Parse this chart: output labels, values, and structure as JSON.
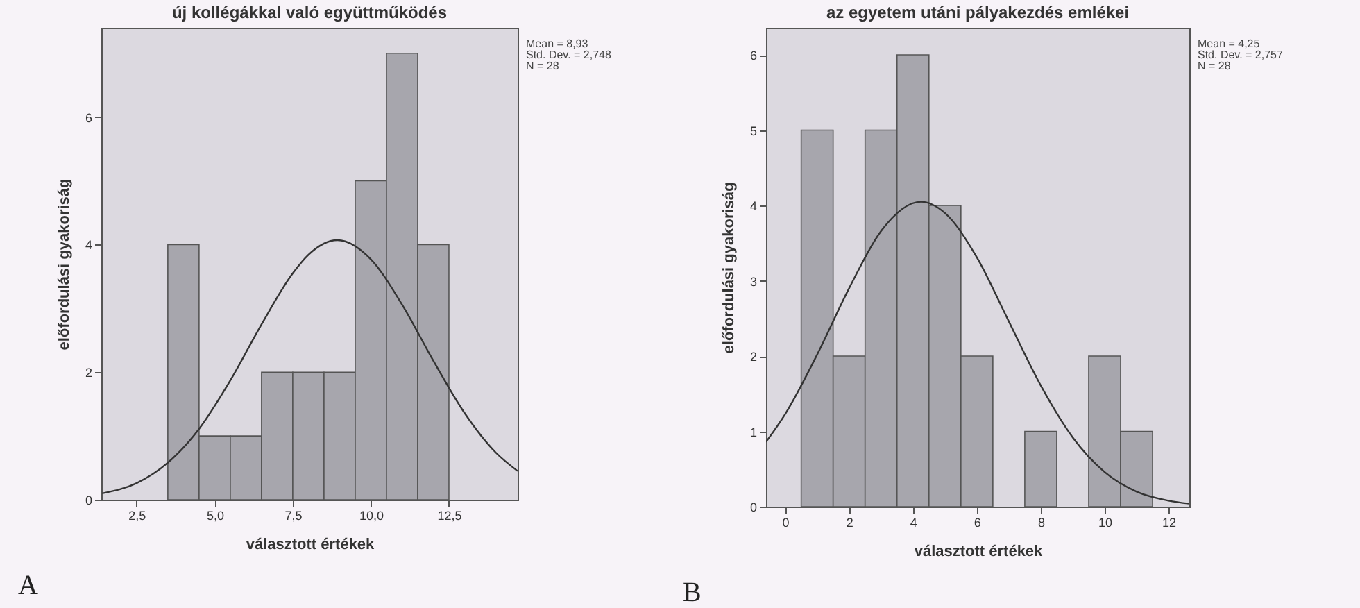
{
  "chart_data": [
    {
      "type": "histogram",
      "title": "új kollégákkal való együttműködés",
      "xlabel": "választott értékek",
      "ylabel": "előfordulási gyakoriság",
      "color": "#a7a6ad",
      "bins": [
        3.5,
        4.5,
        5.5,
        6.5,
        7.5,
        8.5,
        9.5,
        10.5,
        11.5,
        12.5
      ],
      "values": [
        4,
        1,
        1,
        2,
        2,
        2,
        5,
        7,
        4
      ],
      "series": [
        {
          "type": "line",
          "color": "#333333",
          "x": [
            1.4,
            2.5,
            3.5,
            4.5,
            5.5,
            6.5,
            7.5,
            8,
            8.93,
            10,
            11,
            12,
            13,
            14,
            14.7
          ],
          "values": [
            0.1,
            0.26,
            0.58,
            1.11,
            1.87,
            2.75,
            3.55,
            3.84,
            4.07,
            3.77,
            3.06,
            2.18,
            1.36,
            0.74,
            0.45
          ]
        }
      ],
      "xlim": [
        1.37,
        14.7
      ],
      "xticks": [
        {
          "value": 2.5,
          "label": "2,5"
        },
        {
          "value": 5,
          "label": "5,0"
        },
        {
          "value": 7.5,
          "label": "7,5"
        },
        {
          "value": 10,
          "label": "10,0"
        },
        {
          "value": 12.5,
          "label": "12,5"
        }
      ],
      "ylim": [
        0,
        7.4
      ],
      "yticks": [
        0,
        2,
        4,
        6
      ],
      "grid": false,
      "annotations": [
        "Mean = 8,93",
        "Std. Dev. = 2,748",
        "N = 28",
        "A"
      ]
    },
    {
      "type": "histogram",
      "title": "az egyetem utáni pályakezdés emlékei",
      "xlabel": "választott értékek",
      "ylabel": "előfordulási gyakoriság",
      "color": "#a7a6ad",
      "bins": [
        0.5,
        1.5,
        2.5,
        3.5,
        4.5,
        5.5,
        6.5,
        7.5,
        8.5,
        9.5,
        10.5,
        11.5
      ],
      "values": [
        5,
        2,
        5,
        6,
        4,
        2,
        0,
        1,
        0,
        2,
        1
      ],
      "series": [
        {
          "type": "line",
          "color": "#333333",
          "x": [
            -0.6,
            0,
            1,
            2,
            3,
            4.25,
            5,
            6,
            7,
            8,
            9,
            10,
            11,
            12,
            12.65
          ],
          "values": [
            0.86,
            1.23,
            2.02,
            2.9,
            3.66,
            4.05,
            3.9,
            3.31,
            2.46,
            1.61,
            0.92,
            0.46,
            0.2,
            0.08,
            0.04
          ]
        }
      ],
      "xlim": [
        -0.6,
        12.65
      ],
      "xticks": [
        0,
        2,
        4,
        6,
        8,
        10,
        12
      ],
      "ylim": [
        0,
        6.36
      ],
      "yticks": [
        0,
        1,
        2,
        3,
        4,
        5,
        6
      ],
      "grid": false,
      "annotations": [
        "Mean = 4,25",
        "Std. Dev. = 2,757",
        "N = 28",
        "B"
      ]
    }
  ]
}
